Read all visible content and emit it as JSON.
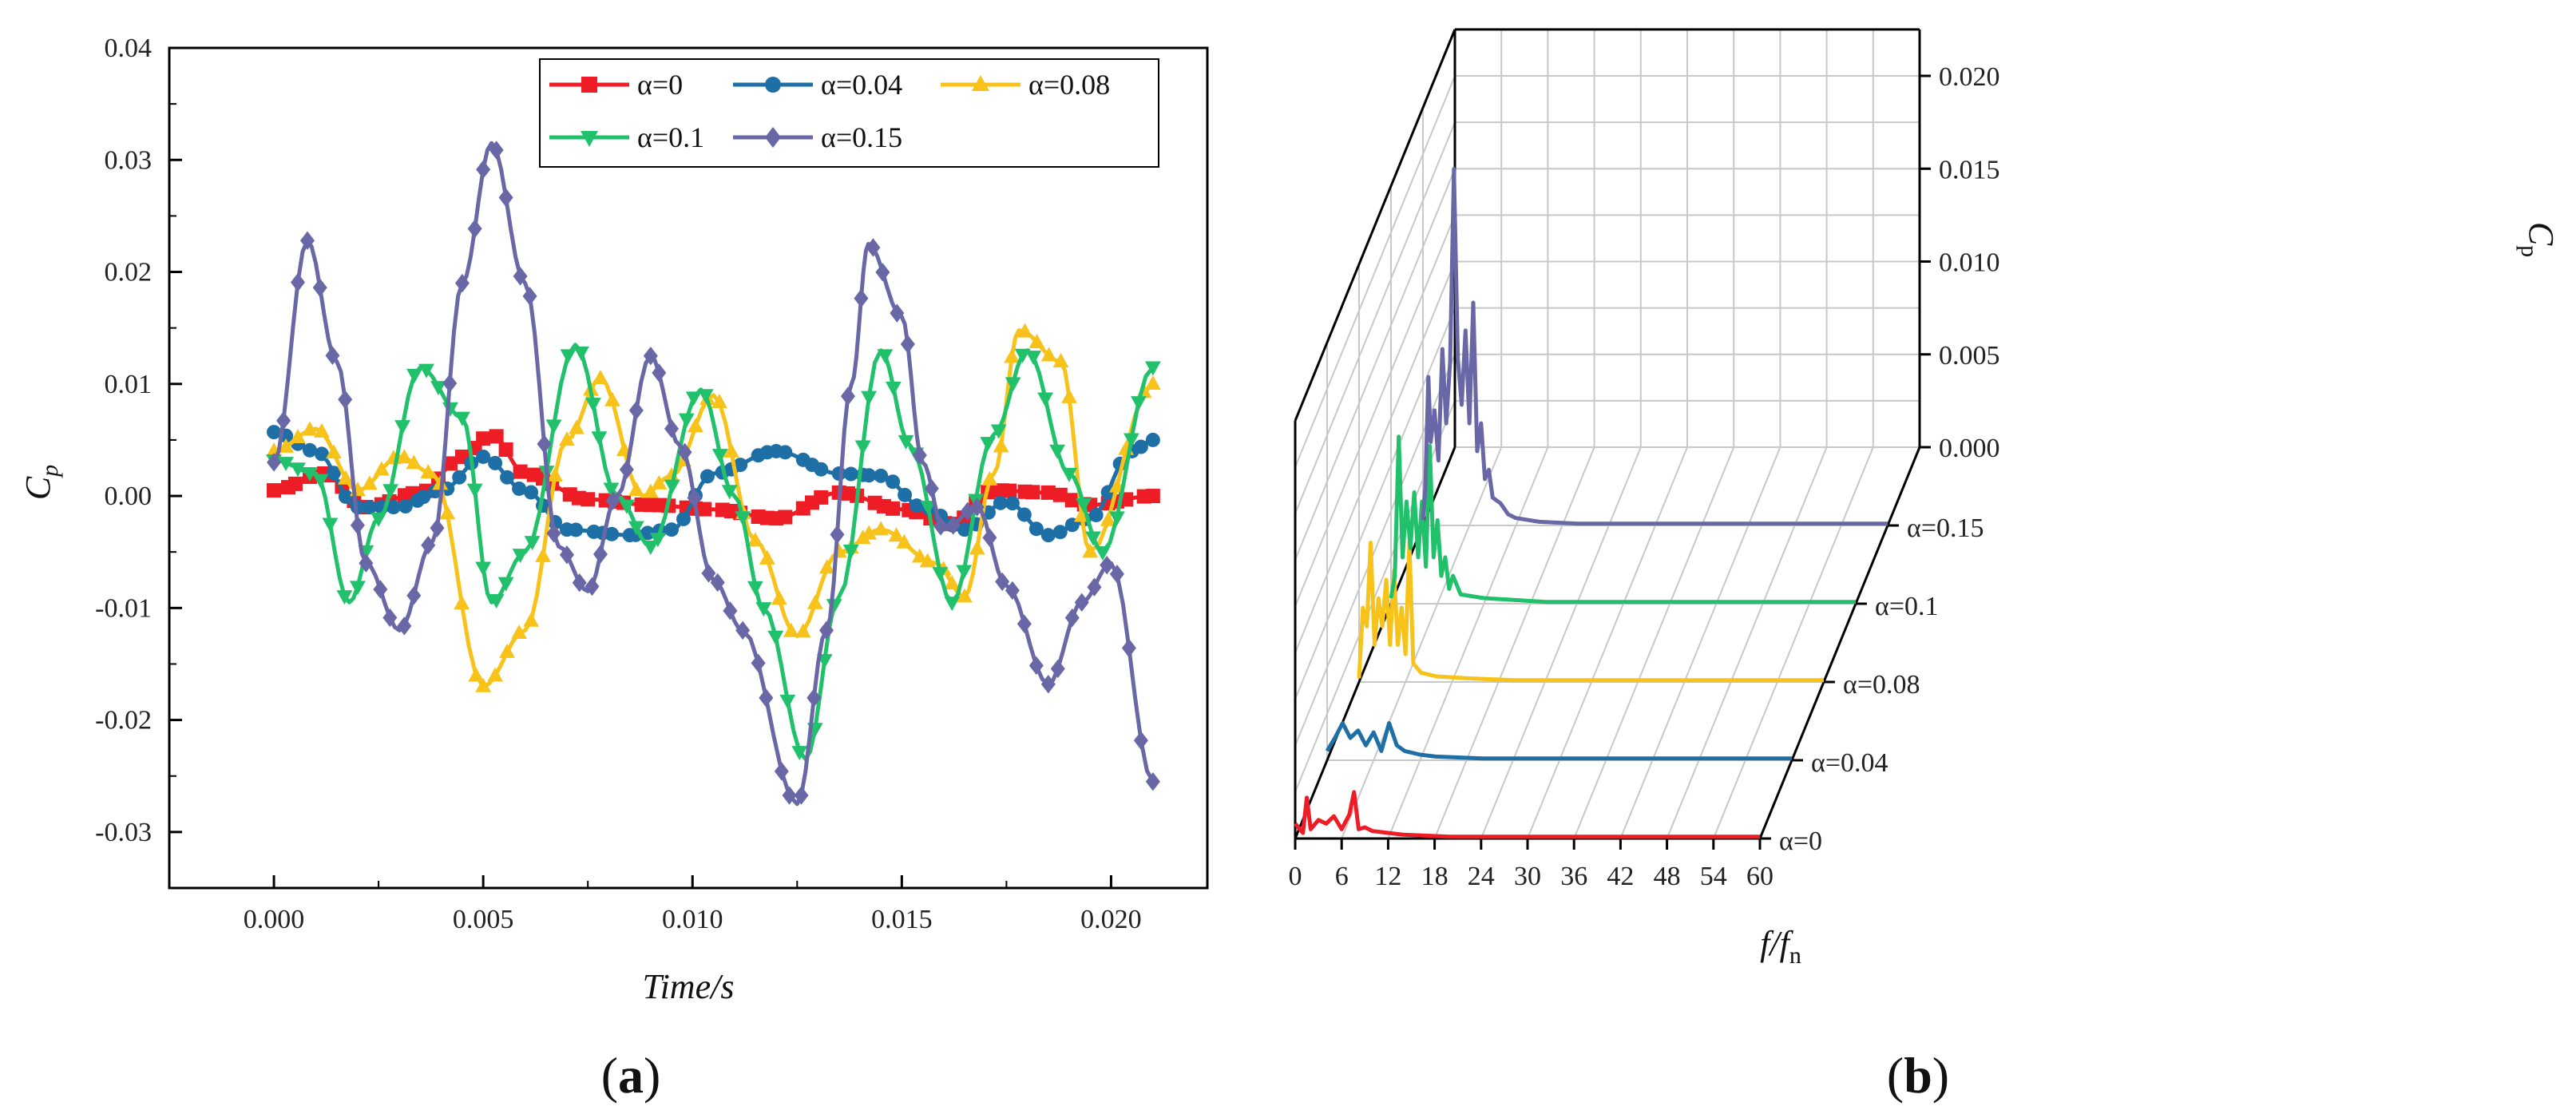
{
  "figure": {
    "panel_labels": {
      "a_open": "(",
      "a_letter": "a",
      "a_close": ")",
      "b_open": "(",
      "b_letter": "b",
      "b_close": ")"
    }
  },
  "colors": {
    "alpha_0": "#ee1c25",
    "alpha_0.04": "#1f6fa7",
    "alpha_0.08": "#f7c31a",
    "alpha_0.1": "#21c16b",
    "alpha_0.15": "#6a67a6"
  },
  "chart_data": [
    {
      "id": "a",
      "type": "line",
      "title": "",
      "xlabel": "Time/s",
      "ylabel_main": "C",
      "ylabel_sub": "p",
      "xlim": [
        -0.0025,
        0.0223
      ],
      "ylim": [
        -0.035,
        0.04
      ],
      "xticks": [
        "0.000",
        "0.005",
        "0.010",
        "0.015",
        "0.020"
      ],
      "xtick_values": [
        0,
        0.005,
        0.01,
        0.015,
        0.02
      ],
      "yticks": [
        "-0.03",
        "-0.02",
        "-0.01",
        "0.00",
        "0.01",
        "0.02",
        "0.03",
        "0.04"
      ],
      "ytick_values": [
        -0.03,
        -0.02,
        -0.01,
        0,
        0.01,
        0.02,
        0.03,
        0.04
      ],
      "legend_position": "top-right",
      "series": [
        {
          "name": "α=0",
          "color_key": "alpha_0",
          "marker": "square",
          "points": [
            [
              0,
              0.0005
            ],
            [
              0.0012,
              0.002
            ],
            [
              0.0022,
              -0.001
            ],
            [
              0.0035,
              0.0003
            ],
            [
              0.0045,
              0.0035
            ],
            [
              0.0052,
              0.0055
            ],
            [
              0.006,
              0.002
            ],
            [
              0.0075,
              -0.0003
            ],
            [
              0.009,
              -0.0008
            ],
            [
              0.0105,
              -0.0012
            ],
            [
              0.012,
              -0.002
            ],
            [
              0.0135,
              0.0003
            ],
            [
              0.015,
              -0.0012
            ],
            [
              0.0162,
              -0.0025
            ],
            [
              0.0172,
              0.0005
            ],
            [
              0.0185,
              0.0003
            ],
            [
              0.0195,
              -0.0008
            ],
            [
              0.021,
              0.0
            ]
          ]
        },
        {
          "name": "α=0.04",
          "color_key": "alpha_0.04",
          "marker": "circle",
          "points": [
            [
              0,
              0.0057
            ],
            [
              0.001,
              0.004
            ],
            [
              0.002,
              -0.001
            ],
            [
              0.003,
              -0.001
            ],
            [
              0.004,
              0.0005
            ],
            [
              0.005,
              0.0035
            ],
            [
              0.006,
              0.0005
            ],
            [
              0.007,
              -0.003
            ],
            [
              0.0085,
              -0.0035
            ],
            [
              0.0095,
              -0.003
            ],
            [
              0.0105,
              0.002
            ],
            [
              0.012,
              0.004
            ],
            [
              0.0135,
              0.002
            ],
            [
              0.0145,
              0.0018
            ],
            [
              0.0155,
              -0.001
            ],
            [
              0.0165,
              -0.003
            ],
            [
              0.0175,
              -0.0005
            ],
            [
              0.0185,
              -0.0035
            ],
            [
              0.0195,
              -0.002
            ],
            [
              0.0205,
              0.004
            ],
            [
              0.021,
              0.005
            ]
          ]
        },
        {
          "name": "α=0.08",
          "color_key": "alpha_0.08",
          "marker": "triangle-up",
          "points": [
            [
              0,
              0.004
            ],
            [
              0.001,
              0.006
            ],
            [
              0.002,
              0.0005
            ],
            [
              0.003,
              0.0035
            ],
            [
              0.0038,
              0.002
            ],
            [
              0.005,
              -0.017
            ],
            [
              0.006,
              -0.012
            ],
            [
              0.007,
              0.005
            ],
            [
              0.0078,
              0.0105
            ],
            [
              0.0088,
              0.0
            ],
            [
              0.0095,
              0.0018
            ],
            [
              0.0105,
              0.009
            ],
            [
              0.0115,
              -0.004
            ],
            [
              0.0125,
              -0.0125
            ],
            [
              0.0135,
              -0.005
            ],
            [
              0.0145,
              -0.003
            ],
            [
              0.0158,
              -0.006
            ],
            [
              0.0165,
              -0.009
            ],
            [
              0.0172,
              0.002
            ],
            [
              0.0178,
              0.0148
            ],
            [
              0.0188,
              0.012
            ],
            [
              0.0195,
              -0.005
            ],
            [
              0.021,
              0.01
            ]
          ]
        },
        {
          "name": "α=0.1",
          "color_key": "alpha_0.1",
          "marker": "triangle-down",
          "points": [
            [
              0,
              0.0032
            ],
            [
              0.001,
              0.002
            ],
            [
              0.0018,
              -0.0095
            ],
            [
              0.0025,
              -0.002
            ],
            [
              0.0035,
              0.0115
            ],
            [
              0.0045,
              0.007
            ],
            [
              0.0052,
              -0.0095
            ],
            [
              0.006,
              -0.005
            ],
            [
              0.0072,
              0.0135
            ],
            [
              0.0082,
              0.0
            ],
            [
              0.009,
              -0.0045
            ],
            [
              0.0102,
              0.0095
            ],
            [
              0.011,
              0.0
            ],
            [
              0.0117,
              -0.01
            ],
            [
              0.0127,
              -0.0235
            ],
            [
              0.0135,
              -0.009
            ],
            [
              0.0145,
              0.013
            ],
            [
              0.0152,
              0.0045
            ],
            [
              0.0162,
              -0.0095
            ],
            [
              0.0172,
              0.0055
            ],
            [
              0.018,
              0.013
            ],
            [
              0.019,
              0.002
            ],
            [
              0.0198,
              -0.005
            ],
            [
              0.021,
              0.0115
            ]
          ]
        },
        {
          "name": "α=0.15",
          "color_key": "alpha_0.15",
          "marker": "diamond",
          "points": [
            [
              0,
              0.003
            ],
            [
              0.0008,
              0.0228
            ],
            [
              0.0015,
              0.012
            ],
            [
              0.0022,
              -0.006
            ],
            [
              0.003,
              -0.012
            ],
            [
              0.0038,
              -0.004
            ],
            [
              0.0045,
              0.019
            ],
            [
              0.0052,
              0.0315
            ],
            [
              0.006,
              0.019
            ],
            [
              0.0068,
              -0.0045
            ],
            [
              0.0075,
              -0.0085
            ],
            [
              0.0082,
              0.0
            ],
            [
              0.009,
              0.0125
            ],
            [
              0.0097,
              0.0045
            ],
            [
              0.0105,
              -0.0075
            ],
            [
              0.0112,
              -0.012
            ],
            [
              0.0125,
              -0.0275
            ],
            [
              0.0132,
              -0.012
            ],
            [
              0.0138,
              0.01
            ],
            [
              0.0142,
              0.0225
            ],
            [
              0.015,
              0.016
            ],
            [
              0.0155,
              0.003
            ],
            [
              0.016,
              -0.003
            ],
            [
              0.0168,
              -0.001
            ],
            [
              0.0175,
              -0.008
            ],
            [
              0.0185,
              -0.0168
            ],
            [
              0.0193,
              -0.0095
            ],
            [
              0.02,
              -0.006
            ],
            [
              0.021,
              -0.0255
            ]
          ]
        }
      ]
    },
    {
      "id": "b",
      "type": "line",
      "projection": "3d-waterfall",
      "title": "",
      "xlabel_main": "f",
      "xlabel_mid": "/f",
      "xlabel_sub": "n",
      "zlabel_main": "C",
      "zlabel_sub": "p",
      "xlim": [
        0,
        60
      ],
      "zlim": [
        0,
        0.022
      ],
      "xticks": [
        "0",
        "6",
        "12",
        "18",
        "24",
        "30",
        "36",
        "42",
        "48",
        "54",
        "60"
      ],
      "xtick_values": [
        0,
        6,
        12,
        18,
        24,
        30,
        36,
        42,
        48,
        54,
        60
      ],
      "zticks": [
        "0.000",
        "0.005",
        "0.010",
        "0.015",
        "0.020"
      ],
      "ztick_values": [
        0,
        0.005,
        0.01,
        0.015,
        0.02
      ],
      "category_labels": [
        "α=0",
        "α=0.04",
        "α=0.08",
        "α=0.1",
        "α=0.15"
      ],
      "series": [
        {
          "name": "α=0",
          "color_key": "alpha_0",
          "points": [
            [
              0,
              0.0008
            ],
            [
              1,
              0.0003
            ],
            [
              1.5,
              0.0022
            ],
            [
              2,
              0.0005
            ],
            [
              3,
              0.001
            ],
            [
              4,
              0.0008
            ],
            [
              5,
              0.0012
            ],
            [
              6,
              0.0005
            ],
            [
              7,
              0.0013
            ],
            [
              7.6,
              0.0025
            ],
            [
              8.2,
              0.0005
            ],
            [
              9,
              0.0006
            ],
            [
              10,
              0.0004
            ],
            [
              12,
              0.0003
            ],
            [
              14,
              0.0002
            ],
            [
              20,
              0.0001
            ],
            [
              30,
              0.0001
            ],
            [
              40,
              0.0001
            ],
            [
              60,
              0.0001
            ]
          ]
        },
        {
          "name": "α=0.04",
          "color_key": "alpha_0.04",
          "points": [
            [
              0,
              0.0005
            ],
            [
              1,
              0.0012
            ],
            [
              2,
              0.002
            ],
            [
              3,
              0.0012
            ],
            [
              4,
              0.0016
            ],
            [
              5,
              0.0008
            ],
            [
              6,
              0.0015
            ],
            [
              7,
              0.0005
            ],
            [
              8,
              0.002
            ],
            [
              9,
              0.0008
            ],
            [
              10,
              0.0005
            ],
            [
              12,
              0.0003
            ],
            [
              14,
              0.0002
            ],
            [
              20,
              0.0001
            ],
            [
              30,
              0.0001
            ],
            [
              40,
              0.0001
            ],
            [
              60,
              0.0001
            ]
          ]
        },
        {
          "name": "α=0.08",
          "color_key": "alpha_0.08",
          "points": [
            [
              0,
              0.0002
            ],
            [
              0.5,
              0.004
            ],
            [
              1,
              0.003
            ],
            [
              1.5,
              0.0075
            ],
            [
              2,
              0.002
            ],
            [
              2.5,
              0.0045
            ],
            [
              3,
              0.003
            ],
            [
              3.5,
              0.0055
            ],
            [
              4,
              0.002
            ],
            [
              4.5,
              0.006
            ],
            [
              5,
              0.002
            ],
            [
              5.5,
              0.004
            ],
            [
              6,
              0.0015
            ],
            [
              6.5,
              0.0075
            ],
            [
              7,
              0.001
            ],
            [
              8,
              0.0005
            ],
            [
              10,
              0.0003
            ],
            [
              14,
              0.0002
            ],
            [
              20,
              0.0001
            ],
            [
              40,
              0.0001
            ],
            [
              60,
              0.0001
            ]
          ]
        },
        {
          "name": "α=0.1",
          "color_key": "alpha_0.1",
          "points": [
            [
              0,
              0.0003
            ],
            [
              0.5,
              0.0015
            ],
            [
              1,
              0.009
            ],
            [
              1.5,
              0.0025
            ],
            [
              2,
              0.0055
            ],
            [
              2.5,
              0.003
            ],
            [
              3,
              0.006
            ],
            [
              3.5,
              0.0025
            ],
            [
              4,
              0.0055
            ],
            [
              4.5,
              0.002
            ],
            [
              5,
              0.0085
            ],
            [
              5.5,
              0.0025
            ],
            [
              6,
              0.0045
            ],
            [
              6.5,
              0.0015
            ],
            [
              7,
              0.0025
            ],
            [
              7.5,
              0.0008
            ],
            [
              8,
              0.0015
            ],
            [
              9,
              0.0005
            ],
            [
              12,
              0.0003
            ],
            [
              20,
              0.0001
            ],
            [
              40,
              0.0001
            ],
            [
              60,
              0.0001
            ]
          ]
        },
        {
          "name": "α=0.15",
          "color_key": "alpha_0.15",
          "points": [
            [
              0,
              0.0003
            ],
            [
              0.3,
              0.002
            ],
            [
              0.7,
              0.008
            ],
            [
              1,
              0.0045
            ],
            [
              1.5,
              0.0062
            ],
            [
              2,
              0.0035
            ],
            [
              2.5,
              0.0095
            ],
            [
              3,
              0.0055
            ],
            [
              3.5,
              0.0088
            ],
            [
              4,
              0.0192
            ],
            [
              4.5,
              0.009
            ],
            [
              5,
              0.0065
            ],
            [
              5.5,
              0.0105
            ],
            [
              6,
              0.0055
            ],
            [
              6.5,
              0.012
            ],
            [
              7,
              0.004
            ],
            [
              7.5,
              0.0055
            ],
            [
              8,
              0.0025
            ],
            [
              8.5,
              0.003
            ],
            [
              9,
              0.0015
            ],
            [
              10,
              0.0012
            ],
            [
              11,
              0.0006
            ],
            [
              12,
              0.0004
            ],
            [
              15,
              0.0002
            ],
            [
              20,
              0.0001
            ],
            [
              40,
              0.0001
            ],
            [
              60,
              0.0001
            ]
          ]
        }
      ]
    }
  ]
}
